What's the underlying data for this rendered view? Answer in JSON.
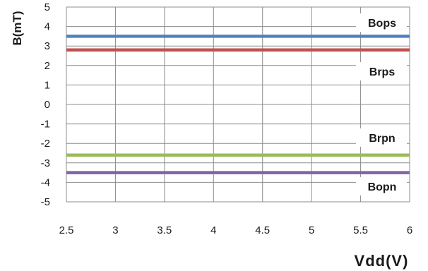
{
  "chart_data": {
    "type": "line",
    "title": "",
    "xlabel": "Vdd(V)",
    "ylabel": "B(mT)",
    "xlim": [
      2.5,
      6
    ],
    "ylim": [
      -5,
      5
    ],
    "x_ticks": [
      "2.5",
      "3",
      "3.5",
      "4",
      "4.5",
      "5",
      "5.5",
      "6"
    ],
    "y_ticks": [
      "5",
      "4",
      "3",
      "2",
      "1",
      "0",
      "-1",
      "-2",
      "-3",
      "-4",
      "-5"
    ],
    "grid": true,
    "x": [
      2.5,
      6
    ],
    "series": [
      {
        "name": "Bops",
        "values": [
          3.5,
          3.5
        ],
        "color": "#4f81bd"
      },
      {
        "name": "Brps",
        "values": [
          2.8,
          2.8
        ],
        "color": "#c0504d"
      },
      {
        "name": "Brpn",
        "values": [
          -2.6,
          -2.6
        ],
        "color": "#9bbb59"
      },
      {
        "name": "Bopn",
        "values": [
          -3.5,
          -3.5
        ],
        "color": "#8064a2"
      }
    ]
  }
}
